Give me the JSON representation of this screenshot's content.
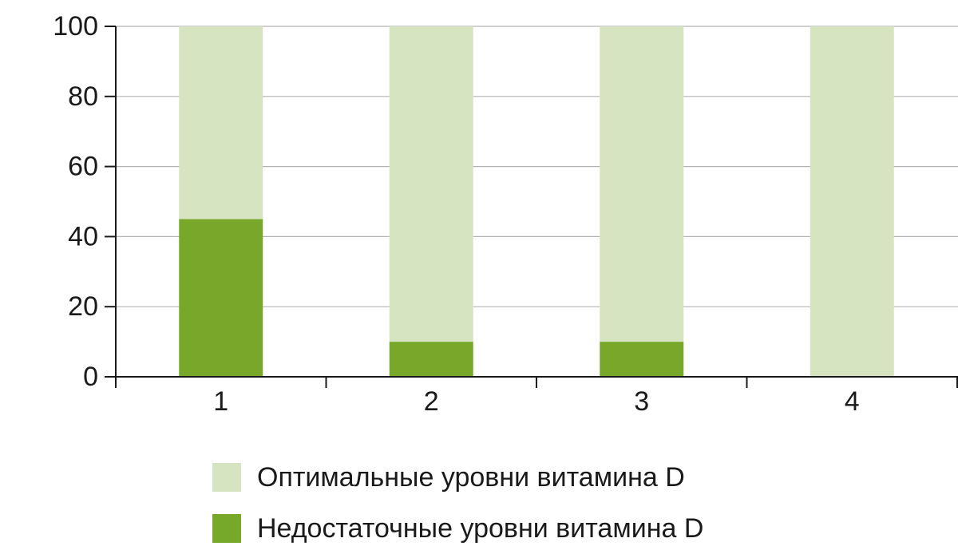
{
  "chart_data": {
    "type": "bar",
    "stacked": true,
    "categories": [
      "1",
      "2",
      "3",
      "4"
    ],
    "series": [
      {
        "name": "Недостаточные уровни витамина D",
        "values": [
          45,
          10,
          10,
          0
        ],
        "color": "#77a82a"
      },
      {
        "name": "Оптимальные уровни витамина D",
        "values": [
          55,
          90,
          90,
          100
        ],
        "color": "#d7e4c1"
      }
    ],
    "yticks": [
      "0",
      "20",
      "40",
      "60",
      "80",
      "100"
    ],
    "ylim": [
      0,
      100
    ],
    "grid": true,
    "legend_position": "bottom",
    "legend_order": [
      1,
      0
    ]
  }
}
